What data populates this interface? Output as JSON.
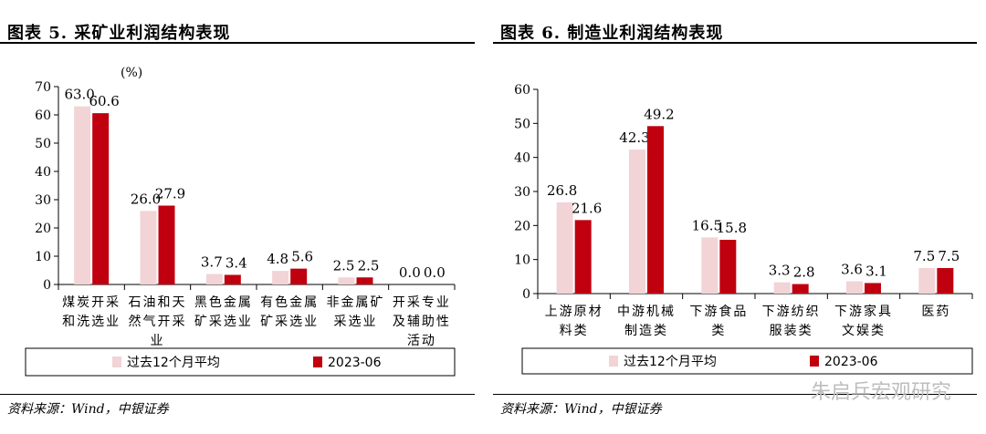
{
  "watermark": "朱启兵宏观研究",
  "charts": [
    {
      "title": "图表 5. 采矿业利润结构表现",
      "source": "资料来源：Wind，中银证券",
      "unit": "(%)",
      "colors": {
        "avg": "#f2d3d6",
        "current": "#c0000f"
      },
      "chart_data": {
        "type": "bar",
        "categories": [
          [
            "煤炭开采",
            "和洗选业"
          ],
          [
            "石油和天",
            "然气开采",
            "业"
          ],
          [
            "黑色金属",
            "矿采选业"
          ],
          [
            "有色金属",
            "矿采选业"
          ],
          [
            "非金属矿",
            "采选业"
          ],
          [
            "开采专业",
            "及辅助性",
            "活动"
          ]
        ],
        "series": [
          {
            "name": "过去12个月平均",
            "values": [
              63.0,
              26.0,
              3.7,
              4.8,
              2.5,
              0.0
            ]
          },
          {
            "name": "2023-06",
            "values": [
              60.6,
              27.9,
              3.4,
              5.6,
              2.5,
              0.0
            ]
          }
        ],
        "ylim": [
          0,
          70
        ],
        "yticks": [
          0,
          10,
          20,
          30,
          40,
          50,
          60,
          70
        ],
        "legend": "bottom"
      }
    },
    {
      "title": "图表 6. 制造业利润结构表现",
      "source": "资料来源：Wind，中银证券",
      "unit": "",
      "colors": {
        "avg": "#f2d3d6",
        "current": "#c0000f"
      },
      "chart_data": {
        "type": "bar",
        "categories": [
          [
            "上游原材",
            "料类"
          ],
          [
            "中游机械",
            "制造类"
          ],
          [
            "下游食品",
            "类"
          ],
          [
            "下游纺织",
            "服装类"
          ],
          [
            "下游家具",
            "文娱类"
          ],
          [
            "医药"
          ]
        ],
        "series": [
          {
            "name": "过去12个月平均",
            "values": [
              26.8,
              42.3,
              16.5,
              3.3,
              3.6,
              7.5
            ]
          },
          {
            "name": "2023-06",
            "values": [
              21.6,
              49.2,
              15.8,
              2.8,
              3.1,
              7.5
            ]
          }
        ],
        "ylim": [
          0,
          60
        ],
        "yticks": [
          0,
          10,
          20,
          30,
          40,
          50,
          60
        ],
        "legend": "bottom"
      }
    }
  ]
}
